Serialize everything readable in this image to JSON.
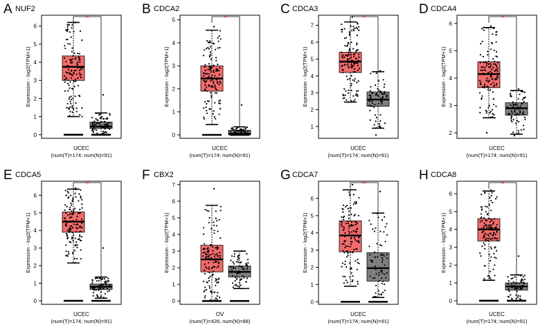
{
  "colors": {
    "tumor": "#f26b6b",
    "normal": "#7f7f7f",
    "sig": "#e8433f",
    "axis": "#000000"
  },
  "ylabel": "Expression - log2(TPM+1)",
  "chart_data": [
    {
      "type": "box",
      "panel": "A",
      "gene": "NUF2",
      "xlabel": "UCEC",
      "sublabel": "(num(T)=174; num(N)=91)",
      "yticks": [
        0,
        1,
        2,
        3,
        4,
        5,
        6
      ],
      "ylim": [
        -0.2,
        6.6
      ],
      "significance": "*",
      "tumor": {
        "q1": 3.0,
        "median": 3.75,
        "q3": 4.35,
        "whisker_low": 1.0,
        "whisker_high": 6.2,
        "min": 0.0,
        "max": 6.2
      },
      "normal": {
        "q1": 0.35,
        "median": 0.45,
        "q3": 0.7,
        "whisker_low": 0.0,
        "whisker_high": 1.2,
        "min": 0.0,
        "max": 2.2
      }
    },
    {
      "type": "box",
      "panel": "B",
      "gene": "CDCA2",
      "xlabel": "UCEC",
      "sublabel": "(num(T)=174; num(N)=91)",
      "yticks": [
        0,
        1,
        2,
        3,
        4,
        5
      ],
      "ylim": [
        -0.15,
        5.2
      ],
      "significance": "*",
      "tumor": {
        "q1": 1.9,
        "median": 2.45,
        "q3": 3.0,
        "whisker_low": 0.45,
        "whisker_high": 4.55,
        "min": 0.0,
        "max": 4.7
      },
      "normal": {
        "q1": 0.0,
        "median": 0.05,
        "q3": 0.2,
        "whisker_low": 0.0,
        "whisker_high": 0.35,
        "min": 0.0,
        "max": 1.3
      }
    },
    {
      "type": "box",
      "panel": "C",
      "gene": "CDCA3",
      "xlabel": "UCEC",
      "sublabel": "(num(T)=174; num(N)=91)",
      "yticks": [
        1,
        2,
        3,
        4,
        5,
        6,
        7
      ],
      "ylim": [
        0.3,
        7.6
      ],
      "significance": "*",
      "tumor": {
        "q1": 4.2,
        "median": 4.85,
        "q3": 5.4,
        "whisker_low": 2.45,
        "whisker_high": 7.2,
        "min": 2.45,
        "max": 7.5
      },
      "normal": {
        "q1": 2.2,
        "median": 2.6,
        "q3": 3.05,
        "whisker_low": 0.9,
        "whisker_high": 4.25,
        "min": 0.5,
        "max": 4.3
      }
    },
    {
      "type": "box",
      "panel": "D",
      "gene": "CDCA4",
      "xlabel": "UCEC",
      "sublabel": "(num(T)=174; num(N)=91)",
      "yticks": [
        2,
        3,
        4,
        5,
        6
      ],
      "ylim": [
        1.8,
        6.3
      ],
      "significance": "*",
      "tumor": {
        "q1": 3.65,
        "median": 4.15,
        "q3": 4.6,
        "whisker_low": 2.55,
        "whisker_high": 5.85,
        "min": 2.0,
        "max": 5.9
      },
      "normal": {
        "q1": 2.65,
        "median": 2.9,
        "q3": 3.1,
        "whisker_low": 1.95,
        "whisker_high": 3.55,
        "min": 1.9,
        "max": 3.6
      }
    },
    {
      "type": "box",
      "panel": "E",
      "gene": "CDCA5",
      "xlabel": "UCEC",
      "sublabel": "(num(T)=174; num(N)=91)",
      "yticks": [
        0,
        1,
        2,
        3,
        4,
        5,
        6
      ],
      "ylim": [
        -0.2,
        6.8
      ],
      "significance": "*",
      "tumor": {
        "q1": 3.9,
        "median": 4.5,
        "q3": 5.05,
        "whisker_low": 2.15,
        "whisker_high": 6.35,
        "min": 0.0,
        "max": 6.4
      },
      "normal": {
        "q1": 0.65,
        "median": 0.8,
        "q3": 0.95,
        "whisker_low": 0.15,
        "whisker_high": 1.35,
        "min": 0.0,
        "max": 3.0
      }
    },
    {
      "type": "box",
      "panel": "F",
      "gene": "CBX2",
      "xlabel": "OV",
      "sublabel": "(num(T)=426; num(N)=88)",
      "yticks": [
        0,
        1,
        2,
        3,
        4,
        5,
        6,
        7
      ],
      "ylim": [
        -0.2,
        7.2
      ],
      "significance": "",
      "tumor": {
        "q1": 1.75,
        "median": 2.5,
        "q3": 3.35,
        "whisker_low": 0.0,
        "whisker_high": 5.75,
        "min": 0.0,
        "max": 6.75
      },
      "normal": {
        "q1": 1.45,
        "median": 1.75,
        "q3": 2.1,
        "whisker_low": 0.75,
        "whisker_high": 3.0,
        "min": 0.0,
        "max": 3.0
      }
    },
    {
      "type": "box",
      "panel": "G",
      "gene": "CDCA7",
      "xlabel": "UCEC",
      "sublabel": "(num(T)=174; num(N)=91)",
      "yticks": [
        0,
        1,
        2,
        3,
        4,
        5,
        6
      ],
      "ylim": [
        -0.15,
        7.0
      ],
      "significance": "*",
      "tumor": {
        "q1": 2.9,
        "median": 3.85,
        "q3": 4.7,
        "whisker_low": 0.9,
        "whisker_high": 6.5,
        "min": 0.0,
        "max": 6.8
      },
      "normal": {
        "q1": 1.2,
        "median": 1.95,
        "q3": 2.85,
        "whisker_low": 0.25,
        "whisker_high": 5.15,
        "min": 0.0,
        "max": 6.4
      }
    },
    {
      "type": "box",
      "panel": "H",
      "gene": "CDCA8",
      "xlabel": "UCEC",
      "sublabel": "(num(T)=174; num(N)=91)",
      "yticks": [
        0,
        1,
        2,
        3,
        4,
        5,
        6
      ],
      "ylim": [
        -0.2,
        6.7
      ],
      "significance": "*",
      "tumor": {
        "q1": 3.35,
        "median": 4.0,
        "q3": 4.6,
        "whisker_low": 1.15,
        "whisker_high": 6.15,
        "min": 0.0,
        "max": 6.2
      },
      "normal": {
        "q1": 0.6,
        "median": 0.8,
        "q3": 1.0,
        "whisker_low": 0.0,
        "whisker_high": 1.45,
        "min": 0.0,
        "max": 2.5
      }
    }
  ]
}
